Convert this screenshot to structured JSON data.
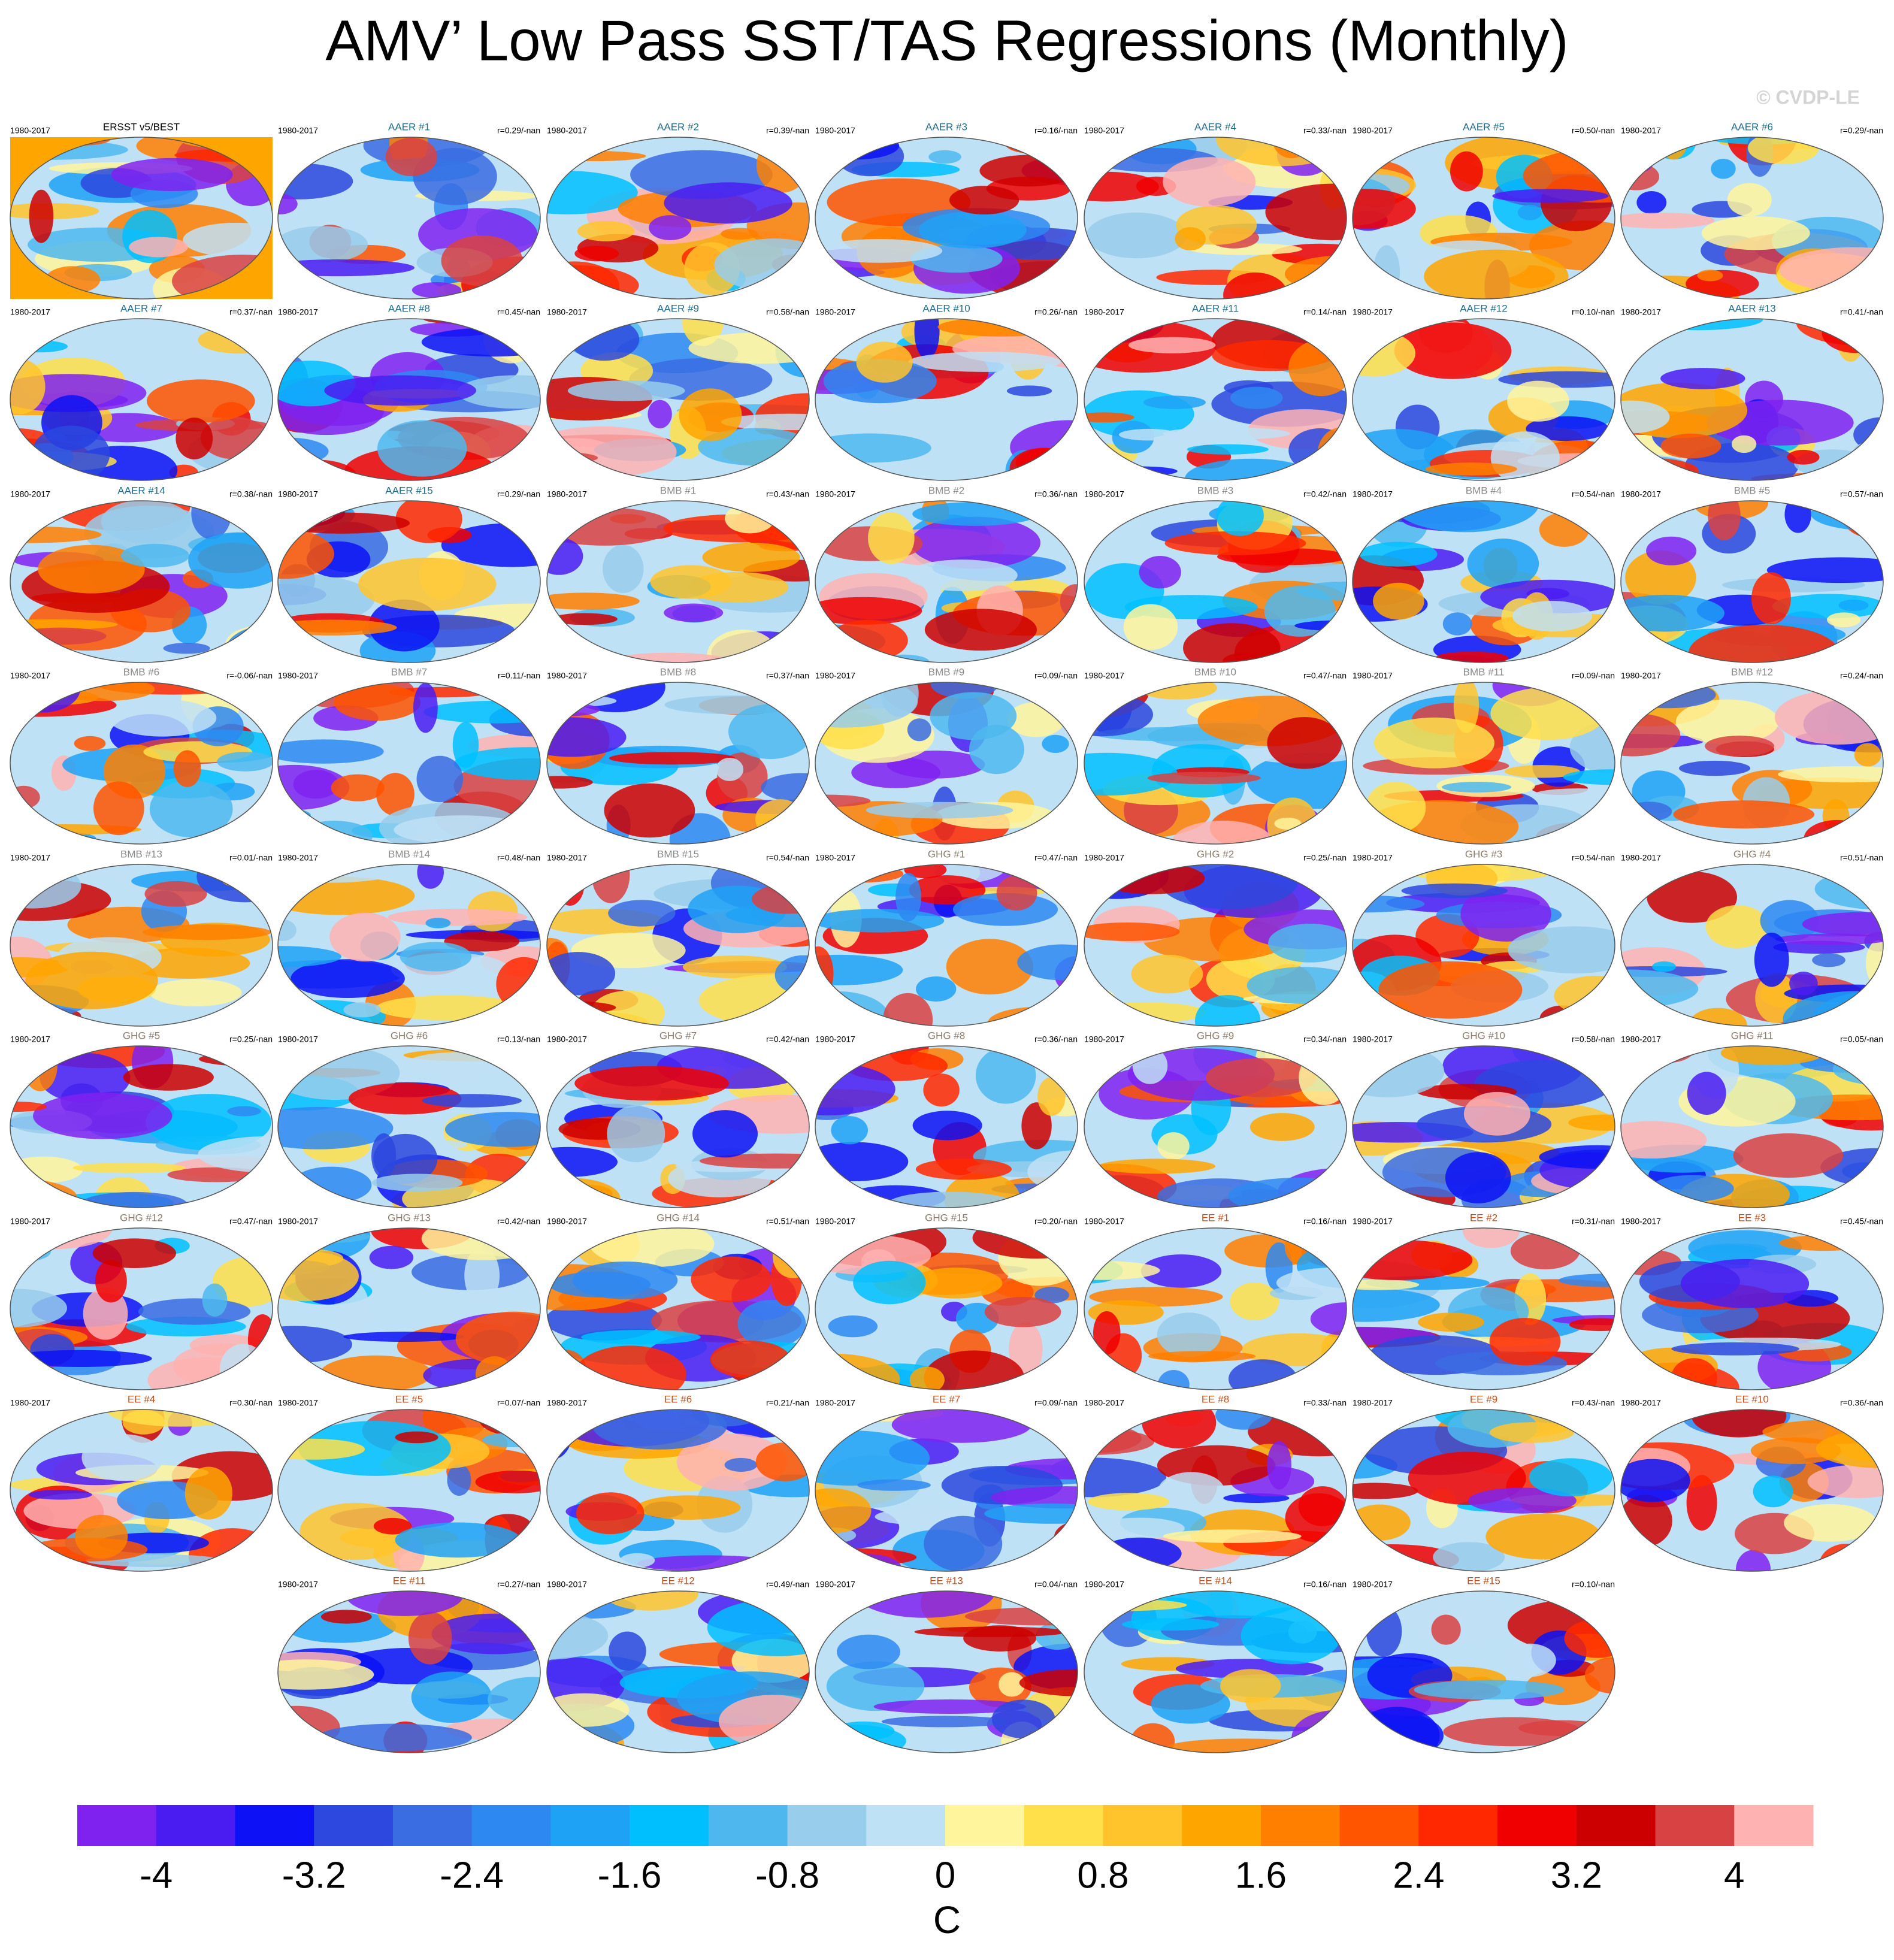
{
  "title": "AMV’ Low Pass SST/TAS Regressions (Monthly)",
  "watermark": "© CVDP-LE",
  "period": "1980-2017",
  "observation": {
    "title": "ERSST v5/BEST",
    "color": "#000000"
  },
  "groups": [
    {
      "color": "#1f6e8c",
      "panels": [
        {
          "title": "AAER #1",
          "r": "r=0.29/-nan"
        },
        {
          "title": "AAER #2",
          "r": "r=0.39/-nan"
        },
        {
          "title": "AAER #3",
          "r": "r=0.16/-nan"
        },
        {
          "title": "AAER #4",
          "r": "r=0.33/-nan"
        },
        {
          "title": "AAER #5",
          "r": "r=0.50/-nan"
        },
        {
          "title": "AAER #6",
          "r": "r=0.29/-nan"
        },
        {
          "title": "AAER #7",
          "r": "r=0.37/-nan"
        },
        {
          "title": "AAER #8",
          "r": "r=0.45/-nan"
        },
        {
          "title": "AAER #9",
          "r": "r=0.58/-nan"
        },
        {
          "title": "AAER #10",
          "r": "r=0.26/-nan"
        },
        {
          "title": "AAER #11",
          "r": "r=0.14/-nan"
        },
        {
          "title": "AAER #12",
          "r": "r=0.10/-nan"
        },
        {
          "title": "AAER #13",
          "r": "r=0.41/-nan"
        },
        {
          "title": "AAER #14",
          "r": "r=0.38/-nan"
        },
        {
          "title": "AAER #15",
          "r": "r=0.29/-nan"
        }
      ]
    },
    {
      "color": "#8a8a8a",
      "panels": [
        {
          "title": "BMB #1",
          "r": "r=0.43/-nan"
        },
        {
          "title": "BMB #2",
          "r": "r=0.36/-nan"
        },
        {
          "title": "BMB #3",
          "r": "r=0.42/-nan"
        },
        {
          "title": "BMB #4",
          "r": "r=0.54/-nan"
        },
        {
          "title": "BMB #5",
          "r": "r=0.57/-nan"
        },
        {
          "title": "BMB #6",
          "r": "r=-0.06/-nan"
        },
        {
          "title": "BMB #7",
          "r": "r=0.11/-nan"
        },
        {
          "title": "BMB #8",
          "r": "r=0.37/-nan"
        },
        {
          "title": "BMB #9",
          "r": "r=0.09/-nan"
        },
        {
          "title": "BMB #10",
          "r": "r=0.47/-nan"
        },
        {
          "title": "BMB #11",
          "r": "r=0.09/-nan"
        },
        {
          "title": "BMB #12",
          "r": "r=0.24/-nan"
        },
        {
          "title": "BMB #13",
          "r": "r=0.01/-nan"
        },
        {
          "title": "BMB #14",
          "r": "r=0.48/-nan"
        },
        {
          "title": "BMB #15",
          "r": "r=0.54/-nan"
        }
      ]
    },
    {
      "color": "#8c7c6c",
      "panels": [
        {
          "title": "GHG #1",
          "r": "r=0.47/-nan"
        },
        {
          "title": "GHG #2",
          "r": "r=0.25/-nan"
        },
        {
          "title": "GHG #3",
          "r": "r=0.54/-nan"
        },
        {
          "title": "GHG #4",
          "r": "r=0.51/-nan"
        },
        {
          "title": "GHG #5",
          "r": "r=0.25/-nan"
        },
        {
          "title": "GHG #6",
          "r": "r=0.13/-nan"
        },
        {
          "title": "GHG #7",
          "r": "r=0.42/-nan"
        },
        {
          "title": "GHG #8",
          "r": "r=0.36/-nan"
        },
        {
          "title": "GHG #9",
          "r": "r=0.34/-nan"
        },
        {
          "title": "GHG #10",
          "r": "r=0.58/-nan"
        },
        {
          "title": "GHG #11",
          "r": "r=0.05/-nan"
        },
        {
          "title": "GHG #12",
          "r": "r=0.47/-nan"
        },
        {
          "title": "GHG #13",
          "r": "r=0.42/-nan"
        },
        {
          "title": "GHG #14",
          "r": "r=0.51/-nan"
        },
        {
          "title": "GHG #15",
          "r": "r=0.20/-nan"
        }
      ]
    },
    {
      "color": "#c0501e",
      "panels": [
        {
          "title": "EE #1",
          "r": "r=0.16/-nan"
        },
        {
          "title": "EE #2",
          "r": "r=0.31/-nan"
        },
        {
          "title": "EE #3",
          "r": "r=0.45/-nan"
        },
        {
          "title": "EE #4",
          "r": "r=0.30/-nan"
        },
        {
          "title": "EE #5",
          "r": "r=0.07/-nan"
        },
        {
          "title": "EE #6",
          "r": "r=0.21/-nan"
        },
        {
          "title": "EE #7",
          "r": "r=0.09/-nan"
        },
        {
          "title": "EE #8",
          "r": "r=0.33/-nan"
        },
        {
          "title": "EE #9",
          "r": "r=0.43/-nan"
        },
        {
          "title": "EE #10",
          "r": "r=0.36/-nan"
        },
        {
          "title": "EE #11",
          "r": "r=0.27/-nan"
        },
        {
          "title": "EE #12",
          "r": "r=0.49/-nan"
        },
        {
          "title": "EE #13",
          "r": "r=0.04/-nan"
        },
        {
          "title": "EE #14",
          "r": "r=0.16/-nan"
        },
        {
          "title": "EE #15",
          "r": "r=0.10/-nan"
        }
      ]
    }
  ],
  "colorbar": {
    "label": "C",
    "xlim": [
      -4.4,
      4.4
    ],
    "ticks": [
      -4,
      -3.2,
      -2.4,
      -1.6,
      -0.8,
      0,
      0.8,
      1.6,
      2.4,
      3.2,
      4
    ],
    "colors": [
      "#7f22f0",
      "#4a1cf2",
      "#0c12f5",
      "#2c48de",
      "#3a6ce2",
      "#2e88f2",
      "#1ea2f6",
      "#00bfff",
      "#4eb8ee",
      "#98cdec",
      "#bfe1f5",
      "#fff59c",
      "#ffdf4a",
      "#ffc42c",
      "#ffa500",
      "#ff7f00",
      "#ff5400",
      "#ff2800",
      "#f00000",
      "#cc0000",
      "#d94242",
      "#ffb2b2"
    ]
  }
}
